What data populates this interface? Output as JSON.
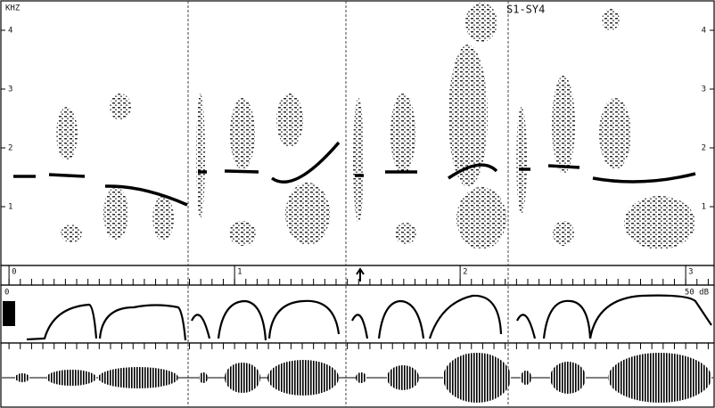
{
  "spectrogram": {
    "unit_label": "KHZ",
    "label": "S1-SY4",
    "yticks": [
      1,
      2,
      3,
      4
    ],
    "ylim": [
      0,
      4.5
    ]
  },
  "time_axis": {
    "ticks": [
      0,
      1,
      2,
      3
    ],
    "xlim": [
      -0.04,
      3.13
    ]
  },
  "intensity": {
    "zero_label": 0,
    "level_label": "50 dB"
  }
}
